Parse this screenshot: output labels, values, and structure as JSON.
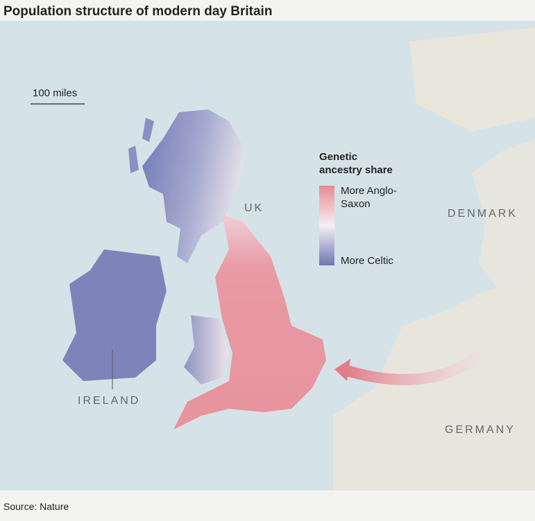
{
  "header": {
    "title": "Population structure of modern day Britain"
  },
  "scale": {
    "label": "100 miles"
  },
  "legend": {
    "title": "Genetic ancestry share",
    "high": "More Anglo-Saxon",
    "low": "More Celtic"
  },
  "places": {
    "uk": "UK",
    "denmark": "DENMARK",
    "ireland": "IRELAND",
    "germany": "GERMANY"
  },
  "footer": {
    "source": "Source: Nature"
  }
}
